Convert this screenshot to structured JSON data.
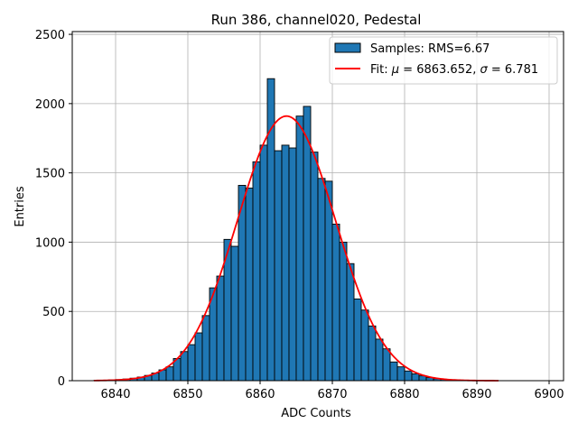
{
  "chart_data": {
    "type": "bar",
    "title": "Run 386, channel020, Pedestal",
    "xlabel": "ADC Counts",
    "ylabel": "Entries",
    "xlim": [
      6834,
      6902
    ],
    "ylim": [
      0,
      2520
    ],
    "xticks": [
      6840,
      6850,
      6860,
      6870,
      6880,
      6890,
      6900
    ],
    "yticks": [
      0,
      500,
      1000,
      1500,
      2000,
      2500
    ],
    "grid": true,
    "legend_position": "top-right",
    "colors": {
      "bars": "#1f77b4",
      "bar_edge": "#000000",
      "fit": "#ff0000",
      "grid": "#b0b0b0"
    },
    "histogram": {
      "name": "Samples: RMS=6.67",
      "bin_width": 1,
      "bin_start": 6837,
      "counts": [
        2,
        3,
        5,
        8,
        12,
        18,
        26,
        38,
        55,
        78,
        100,
        160,
        210,
        260,
        345,
        470,
        670,
        755,
        1020,
        970,
        1410,
        1390,
        1580,
        1700,
        2180,
        1660,
        1700,
        1680,
        1910,
        1980,
        1650,
        1460,
        1440,
        1130,
        1000,
        845,
        590,
        510,
        395,
        300,
        230,
        135,
        100,
        70,
        50,
        35,
        22,
        14,
        9,
        6,
        4,
        3,
        2,
        1,
        1,
        0
      ]
    },
    "fit": {
      "name_prefix": "Fit: ",
      "name_mu_symbol": "μ",
      "name_mu_value": " = 6863.652, ",
      "name_sigma_symbol": "σ",
      "name_sigma_value": " = 6.781",
      "type": "gaussian",
      "mu": 6863.652,
      "sigma": 6.781,
      "amplitude": 1910,
      "x_range": [
        6837,
        6893
      ]
    }
  }
}
